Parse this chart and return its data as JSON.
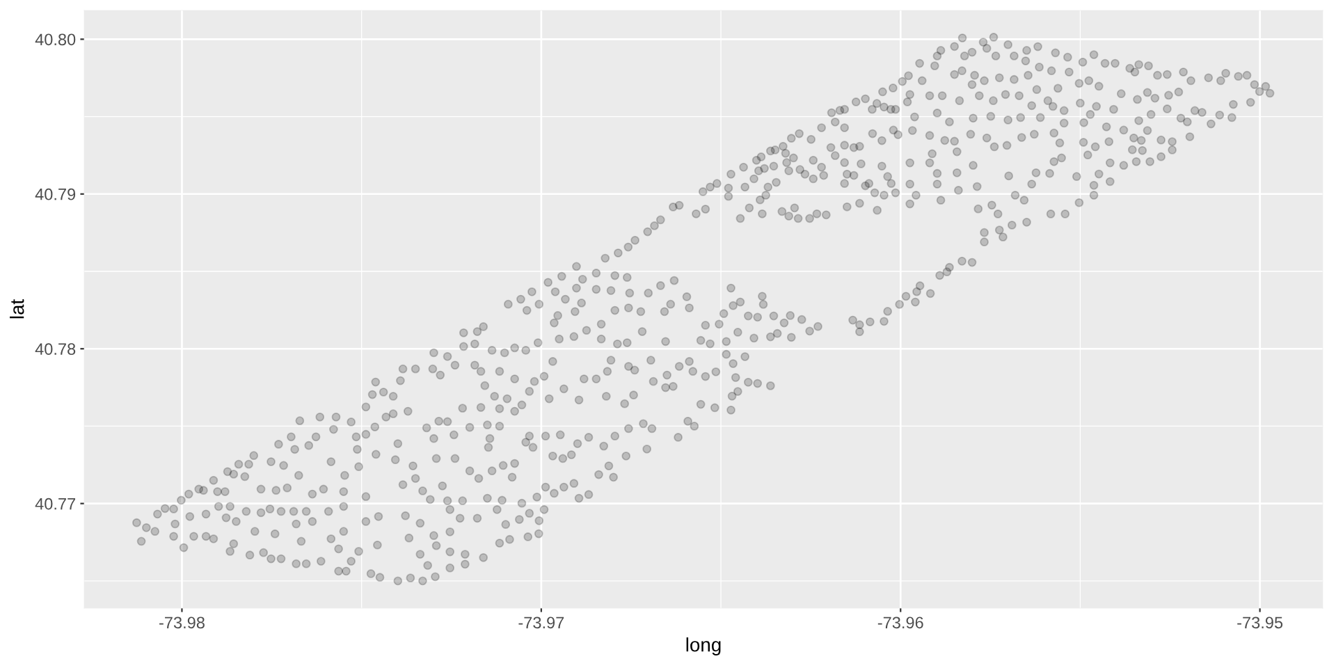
{
  "chart_data": {
    "type": "scatter",
    "xlabel": "long",
    "ylabel": "lat",
    "color": "#000000",
    "marker": "circle",
    "grid": true,
    "xlim": [
      -73.98272,
      -73.94825
    ],
    "ylim": [
      40.76324,
      40.80186
    ],
    "xticks": [
      -73.98,
      -73.97,
      -73.96,
      -73.95
    ],
    "yticks": [
      40.77,
      40.78,
      40.79,
      {
        "value": 40.8,
        "label": "40.80"
      }
    ],
    "x": [
      -73.98126,
      -73.98113,
      -73.98099,
      -73.98075,
      -73.98068,
      -73.98047,
      -73.98023,
      -73.98023,
      -73.98019,
      -73.98002,
      -73.97995,
      -73.97981,
      -73.97978,
      -73.97967,
      -73.97953,
      -73.9794,
      -73.97933,
      -73.97933,
      -73.97912,
      -73.97912,
      -73.97901,
      -73.97898,
      -73.9788,
      -73.97877,
      -73.97873,
      -73.97866,
      -73.97866,
      -73.97856,
      -73.97856,
      -73.97849,
      -73.97842,
      -73.97825,
      -73.97821,
      -73.97814,
      -73.97811,
      -73.978,
      -73.97797,
      -73.9778,
      -73.9778,
      -73.97773,
      -73.97755,
      -73.97752,
      -73.97752,
      -73.97741,
      -73.97738,
      -73.97731,
      -73.97724,
      -73.97724,
      -73.97717,
      -73.97707,
      -73.97696,
      -73.97689,
      -73.97686,
      -73.97682,
      -73.97682,
      -73.97675,
      -73.97672,
      -73.97668,
      -73.97654,
      -73.97654,
      -73.97647,
      -73.97637,
      -73.97637,
      -73.97627,
      -73.97616,
      -73.97613,
      -73.97606,
      -73.97592,
      -73.97585,
      -73.97585,
      -73.97578,
      -73.97571,
      -73.97564,
      -73.97564,
      -73.9755,
      -73.9755,
      -73.9755,
      -73.97547,
      -73.97543,
      -73.97529,
      -73.97529,
      -73.97515,
      -73.97512,
      -73.97508,
      -73.97508,
      -73.97488,
      -73.97488,
      -73.97488,
      -73.97488,
      -73.97474,
      -73.9747,
      -73.97463,
      -73.9746,
      -73.97453,
      -73.97456,
      -73.97449,
      -73.97439,
      -73.97432,
      -73.97461,
      -73.96981,
      -73.96943,
      -73.96885,
      -73.96847,
      -73.96795,
      -73.96761,
      -73.97026,
      -73.96961,
      -73.96933,
      -73.96902,
      -73.96847,
      -73.96806,
      -73.96754,
      -73.96702,
      -73.96668,
      -73.9663,
      -73.96595,
      -73.97092,
      -73.97057,
      -73.9704,
      -73.97006,
      -73.96954,
      -73.96964,
      -73.96906,
      -73.96888,
      -73.96874,
      -73.96833,
      -73.96833,
      -73.96795,
      -73.96757,
      -73.96723,
      -73.96657,
      -73.9664,
      -73.96588,
      -73.96719,
      -73.96654,
      -73.97216,
      -73.97178,
      -73.97161,
      -73.97216,
      -73.97185,
      -73.97009,
      -73.9695,
      -73.96909,
      -73.96788,
      -73.96761,
      -73.96902,
      -73.97299,
      -73.97261,
      -73.9724,
      -73.97385,
      -73.9735,
      -73.97302,
      -73.97281,
      -73.97392,
      -73.97185,
      -73.97168,
      -73.97137,
      -73.97102,
      -73.97074,
      -73.97043,
      -73.97157,
      -73.97116,
      -73.97074,
      -73.97095,
      -73.97116,
      -73.97074,
      -73.97054,
      -73.97033,
      -73.96992,
      -73.96968,
      -73.97019,
      -73.96978,
      -73.96937,
      -73.96895,
      -73.96881,
      -73.96847,
      -73.96816,
      -73.96806,
      -73.96757,
      -73.9674,
      -73.96695,
      -73.9665,
      -73.96633,
      -73.96616,
      -73.96588,
      -73.96578,
      -73.96819,
      -73.96768,
      -73.96743,
      -73.96688,
      -73.96654,
      -73.97219,
      -73.97168,
      -73.9713,
      -73.97412,
      -73.97412,
      -73.97371,
      -73.97285,
      -73.97261,
      -73.97319,
      -73.97199,
      -73.9715,
      -73.97116,
      -73.96592,
      -73.96574,
      -73.96716,
      -73.96692,
      -73.96757,
      -73.97143,
      -73.97147,
      -73.97299,
      -73.97243,
      -73.97399,
      -73.97033,
      -73.96988,
      -73.96947,
      -73.97043,
      -73.97023,
      -73.96968,
      -73.9694,
      -73.96916,
      -73.96899,
      -73.96868,
      -73.96826,
      -73.96795,
      -73.96706,
      -73.96619,
      -73.96812,
      -73.96799,
      -73.9684,
      -73.96764,
      -73.97106,
      -73.97074,
      -73.97081,
      -73.97137,
      -73.97174,
      -73.97199,
      -73.9724,
      -73.97292,
      -73.97357,
      -73.9735,
      -73.97406,
      -73.97385,
      -73.9733,
      -73.97275,
      -73.97309,
      -73.97261,
      -73.97219,
      -73.9715,
      -73.97109,
      -73.97054,
      -73.97012,
      -73.96988,
      -73.96937,
      -73.96909,
      -73.96895,
      -73.96868,
      -73.96964,
      -73.96992,
      -73.97033,
      -73.97061,
      -73.97006,
      -73.97123,
      -73.97099,
      -73.97088,
      -73.97116,
      -73.97037,
      -73.97007,
      -73.97178,
      -73.97226,
      -73.97254,
      -73.97337,
      -73.97378,
      -73.97254,
      -73.97299,
      -73.97292,
      -73.97254,
      -73.97212,
      -73.97161,
      -73.97368,
      -73.97337,
      -73.97316,
      -73.97254,
      -73.97212,
      -73.97295,
      -73.97364,
      -73.97399,
      -73.9733,
      -73.96822,
      -73.96786,
      -73.96758,
      -73.96739,
      -73.96704,
      -73.96685,
      -73.96668,
      -73.96633,
      -73.96616,
      -73.9655,
      -73.9653,
      -73.96511,
      -73.96479,
      -73.96479,
      -73.96472,
      -73.96437,
      -73.96433,
      -73.96408,
      -73.96401,
      -73.96388,
      -73.96395,
      -73.96375,
      -73.96379,
      -73.96369,
      -73.96362,
      -73.96349,
      -73.96353,
      -73.96346,
      -73.96327,
      -73.9632,
      -73.96317,
      -73.96311,
      -73.96298,
      -73.96304,
      -73.96282,
      -73.9628,
      -73.96266,
      -73.96249,
      -73.96243,
      -73.96243,
      -73.9622,
      -73.96214,
      -73.96194,
      -73.96182,
      -73.96156,
      -73.96156,
      -73.96149,
      -73.96156,
      -73.9613,
      -73.96114,
      -73.9613,
      -73.9611,
      -73.96098,
      -73.96088,
      -73.96072,
      -73.96078,
      -73.96052,
      -73.96052,
      -73.96046,
      -73.96036,
      -73.96026,
      -73.96014,
      -73.96007,
      -73.9602,
      -73.9622,
      -73.96156,
      -73.96569,
      -73.96543,
      -73.96446,
      -73.96421,
      -73.96391,
      -73.96385,
      -73.9633,
      -73.96311,
      -73.96295,
      -73.96285,
      -73.96253,
      -73.96233,
      -73.96207,
      -73.96149,
      -73.96114,
      -73.96065,
      -73.96472,
      -73.96446,
      -73.96466,
      -73.96385,
      -73.96382,
      -73.96398,
      -73.96353,
      -73.96307,
      -73.96324,
      -73.96275,
      -73.96343,
      -73.96304,
      -73.96362,
      -73.96408,
      -73.96424,
      -73.96453,
      -73.96492,
      -73.96505,
      -73.96543,
      -73.96556,
      -73.9653,
      -73.96485,
      -73.96485,
      -73.96466,
      -73.96433,
      -73.96514,
      -73.96543,
      -73.96459,
      -73.96424,
      -73.96398,
      -73.96362,
      -73.96453,
      -73.96469,
      -73.96556,
      -73.96517,
      -73.96472,
      -73.96253,
      -73.9623,
      -73.96133,
      -73.96114,
      -73.96114,
      -73.96085,
      -73.96046,
      -73.96036,
      -73.96003,
      -73.95985,
      -73.95959,
      -73.95955,
      -73.95946,
      -73.95917,
      -73.95891,
      -73.95871,
      -73.96169,
      -73.96156,
      -73.96192,
      -73.96182,
      -73.96124,
      -73.96098,
      -73.96079,
      -73.96066,
      -73.96046,
      -73.96027,
      -73.96014,
      -73.9605,
      -73.96021,
      -73.95995,
      -73.95828,
      -73.95741,
      -73.9577,
      -73.9585,
      -73.95888,
      -73.95898,
      -73.95822,
      -73.95801,
      -73.9576,
      -73.95735,
      -73.95701,
      -73.95684,
      -73.95649,
      -73.95618,
      -73.95652,
      -73.95569,
      -73.95535,
      -73.95493,
      -73.95462,
      -73.95431,
      -73.95403,
      -73.95362,
      -73.95337,
      -73.9531,
      -73.95348,
      -73.95285,
      -73.95258,
      -73.95213,
      -73.95192,
      -73.95143,
      -73.95109,
      -73.95095,
      -73.9506,
      -73.95036,
      -73.95015,
      -73.94984,
      -73.95001,
      -73.94972,
      -73.95947,
      -73.95905,
      -73.95829,
      -73.9585,
      -73.95794,
      -73.95801,
      -73.95767,
      -73.95725,
      -73.95684,
      -73.95645,
      -73.95614,
      -73.9558,
      -73.95531,
      -73.95503,
      -73.95476,
      -73.95562,
      -73.95448,
      -73.95978,
      -73.9594,
      -73.95974,
      -73.95981,
      -73.95919,
      -73.95884,
      -73.95836,
      -73.95781,
      -73.95742,
      -73.95708,
      -73.9567,
      -73.95621,
      -73.9559,
      -73.95576,
      -73.95545,
      -73.955,
      -73.95455,
      -73.95407,
      -73.95386,
      -73.95341,
      -73.95313,
      -73.95292,
      -73.95254,
      -73.95226,
      -73.95258,
      -73.95181,
      -73.95161,
      -73.95074,
      -73.95026,
      -73.95961,
      -73.95898,
      -73.95864,
      -73.95798,
      -73.95749,
      -73.95701,
      -73.95666,
      -73.95635,
      -73.95611,
      -73.95545,
      -73.9549,
      -73.95472,
      -73.95427,
      -73.95379,
      -73.95337,
      -73.95303,
      -73.9522,
      -73.95202,
      -73.95112,
      -73.95136,
      -73.95078,
      -73.95967,
      -73.95919,
      -73.95877,
      -73.9585,
      -73.95843,
      -73.95805,
      -73.9576,
      -73.95739,
      -73.95704,
      -73.95663,
      -73.95628,
      -73.95573,
      -73.95557,
      -73.95491,
      -73.95458,
      -73.95479,
      -73.9542,
      -73.95351,
      -73.9533,
      -73.95313,
      -73.95327,
      -73.95355,
      -73.95275,
      -73.95244,
      -73.95244,
      -73.95195,
      -73.95912,
      -73.95974,
      -73.95919,
      -73.95898,
      -73.95843,
      -73.95798,
      -73.95974,
      -73.95898,
      -73.95839,
      -73.95787,
      -73.95957,
      -73.95974,
      -73.95888,
      -73.95784,
      -73.95729,
      -73.95746,
      -73.95699,
      -73.95681,
      -73.95656,
      -73.95635,
      -73.95623,
      -73.95585,
      -73.95573,
      -73.95552,
      -73.95582,
      -73.95542,
      -73.95503,
      -73.9551,
      -73.95462,
      -73.95448,
      -73.95462,
      -73.95417,
      -73.95417,
      -73.95379,
      -73.95344,
      -73.95306,
      -73.95275,
      -73.95649,
      -73.9569,
      -73.95725,
      -73.95767,
      -73.95767,
      -73.95715,
      -73.95829,
      -73.95801,
      -73.95864
    ],
    "values": [
      40.76876,
      40.76756,
      40.76844,
      40.7682,
      40.76932,
      40.76968,
      40.76965,
      40.76788,
      40.76868,
      40.77021,
      40.76715,
      40.77061,
      40.76916,
      40.76788,
      40.77093,
      40.77085,
      40.76932,
      40.76788,
      40.7715,
      40.76772,
      40.77077,
      40.76981,
      40.77077,
      40.76908,
      40.77206,
      40.76981,
      40.76691,
      40.7719,
      40.7674,
      40.76884,
      40.77254,
      40.77174,
      40.76949,
      40.77254,
      40.76667,
      40.7731,
      40.7682,
      40.76941,
      40.77093,
      40.76683,
      40.76965,
      40.7727,
      40.76643,
      40.76804,
      40.77085,
      40.77383,
      40.76949,
      40.76643,
      40.77246,
      40.77101,
      40.77431,
      40.76949,
      40.7735,
      40.76868,
      40.76611,
      40.77182,
      40.77535,
      40.76756,
      40.76611,
      40.76949,
      40.77375,
      40.77061,
      40.76884,
      40.77431,
      40.77559,
      40.76627,
      40.77093,
      40.76949,
      40.7727,
      40.76772,
      40.77479,
      40.77559,
      40.76563,
      40.76707,
      40.76981,
      40.77077,
      40.7682,
      40.77182,
      40.76563,
      40.77527,
      40.76627,
      40.77431,
      40.7735,
      40.77238,
      40.76691,
      40.77624,
      40.77447,
      40.76884,
      40.77045,
      40.76547,
      40.77704,
      40.77495,
      40.77318,
      40.76916,
      40.76732,
      40.76523,
      40.7772,
      40.77559,
      40.77785,
      40.78429,
      40.78468,
      40.78449,
      40.78489,
      40.78473,
      40.78461,
      40.78368,
      40.78368,
      40.7832,
      40.78392,
      40.78384,
      40.78376,
      40.7836,
      40.7836,
      40.78408,
      40.78441,
      40.78336,
      40.78288,
      40.7832,
      40.78248,
      40.78288,
      40.78215,
      40.78167,
      40.7824,
      40.78296,
      40.78119,
      40.78159,
      40.78063,
      40.78248,
      40.78264,
      40.7824,
      40.7824,
      40.78288,
      40.78264,
      40.78111,
      40.78047,
      40.78103,
      40.78111,
      40.78143,
      40.78015,
      40.78031,
      40.78039,
      40.78063,
      40.78079,
      40.78031,
      40.78039,
      40.78532,
      40.77974,
      40.7795,
      40.77894,
      40.7787,
      40.7787,
      40.7787,
      40.7783,
      40.77794,
      40.77894,
      40.77854,
      40.7799,
      40.77974,
      40.78006,
      40.7799,
      40.77762,
      40.77854,
      40.77805,
      40.77677,
      40.77613,
      40.77596,
      40.77637,
      40.77725,
      40.77822,
      40.77918,
      40.77789,
      40.77677,
      40.77741,
      40.77669,
      40.77805,
      40.77805,
      40.77854,
      40.77926,
      40.77886,
      40.77862,
      40.77926,
      40.7783,
      40.77757,
      40.77886,
      40.77918,
      40.77854,
      40.77693,
      40.77645,
      40.77701,
      40.77789,
      40.77749,
      40.77616,
      40.77621,
      40.77693,
      40.77693,
      40.7758,
      40.77596,
      40.77532,
      40.77529,
      40.77489,
      40.77492,
      40.77508,
      40.775,
      40.77532,
      40.775,
      40.77516,
      40.77484,
      40.77484,
      40.7742,
      40.77363,
      40.7742,
      40.77444,
      40.77387,
      40.77436,
      40.77436,
      40.77444,
      40.77396,
      40.77363,
      40.77307,
      40.77291,
      40.77315,
      40.77387,
      40.77428,
      40.77371,
      40.77436,
      40.77352,
      40.77428,
      40.77243,
      40.7717,
      40.77187,
      40.77307,
      40.77246,
      40.77259,
      40.7717,
      40.77211,
      40.77162,
      40.77211,
      40.77291,
      40.77291,
      40.77243,
      40.77162,
      40.77283,
      40.77122,
      40.77082,
      40.77114,
      40.77026,
      40.77018,
      40.77018,
      40.77034,
      40.77021,
      40.77002,
      40.77042,
      40.77106,
      40.77106,
      40.7713,
      40.77034,
      40.77058,
      40.77066,
      40.76961,
      40.76937,
      40.76897,
      40.76889,
      40.76961,
      40.76865,
      40.76768,
      40.76744,
      40.76785,
      40.76805,
      40.76905,
      40.76905,
      40.76961,
      40.76873,
      40.76921,
      40.76817,
      40.76793,
      40.76728,
      40.76688,
      40.76672,
      40.76651,
      40.76777,
      40.76672,
      40.766,
      40.76584,
      40.76608,
      40.76527,
      40.76519,
      40.765,
      40.765,
      40.78585,
      40.78619,
      40.78657,
      40.78701,
      40.78756,
      40.78795,
      40.78833,
      40.78916,
      40.78927,
      40.79015,
      40.79045,
      40.79068,
      40.79038,
      40.78985,
      40.79128,
      40.79173,
      40.79045,
      40.79098,
      40.79218,
      40.7924,
      40.7915,
      40.78992,
      40.79165,
      40.79045,
      40.79278,
      40.79285,
      40.7918,
      40.79075,
      40.79308,
      40.79263,
      40.79203,
      40.7915,
      40.79233,
      40.7936,
      40.7939,
      40.79158,
      40.79128,
      40.79353,
      40.79218,
      40.79098,
      40.79173,
      40.7912,
      40.793,
      40.79248,
      40.79315,
      40.79203,
      40.79128,
      40.79068,
      40.793,
      40.79308,
      40.7912,
      40.79195,
      40.79053,
      40.79068,
      40.79008,
      40.7939,
      40.79345,
      40.7918,
      40.78992,
      40.79113,
      40.79068,
      40.79008,
      40.79383,
      40.79413,
      40.79428,
      40.79428,
      40.78872,
      40.78902,
      40.78842,
      40.7891,
      40.78962,
      40.78872,
      40.78887,
      40.78857,
      40.7891,
      40.78842,
      40.78842,
      40.78872,
      40.78865,
      40.78917,
      40.7894,
      40.78895,
      40.78392,
      40.78302,
      40.78279,
      40.78339,
      40.78287,
      40.78204,
      40.78212,
      40.78215,
      40.78167,
      40.78189,
      40.78099,
      40.78074,
      40.78077,
      40.78069,
      40.78212,
      40.78107,
      40.78227,
      40.78159,
      40.78152,
      40.78054,
      40.78032,
      40.78047,
      40.77964,
      40.77904,
      40.77949,
      40.77851,
      40.77821,
      40.77814,
      40.77784,
      40.77776,
      40.77761,
      40.77724,
      40.77694,
      40.77641,
      40.77619,
      40.77604,
      40.78114,
      40.78144,
      40.78185,
      40.78155,
      40.7811,
      40.78174,
      40.78177,
      40.78242,
      40.78287,
      40.78339,
      40.78302,
      40.78369,
      40.78407,
      40.78357,
      40.78474,
      40.78497,
      40.7954,
      40.79547,
      40.79525,
      40.79465,
      40.79595,
      40.79615,
      40.79547,
      40.79585,
      40.79562,
      40.79547,
      40.79547,
      40.7966,
      40.79685,
      40.79727,
      40.80008,
      40.80013,
      40.79981,
      40.79953,
      40.79928,
      40.79892,
      40.79892,
      40.79916,
      40.79941,
      40.79892,
      40.79965,
      40.79892,
      40.79928,
      40.79952,
      40.7986,
      40.79912,
      40.79884,
      40.79852,
      40.799,
      40.79844,
      40.79844,
      40.79812,
      40.79836,
      40.79828,
      40.79788,
      40.79767,
      40.79772,
      40.79788,
      40.79732,
      40.79751,
      40.79732,
      40.7978,
      40.7976,
      40.79767,
      40.79707,
      40.79695,
      40.79662,
      40.79651,
      40.79844,
      40.79828,
      40.79796,
      40.79772,
      40.79767,
      40.79707,
      40.79732,
      40.79751,
      40.7974,
      40.79767,
      40.7982,
      40.79796,
      40.79788,
      40.79715,
      40.79732,
      40.79683,
      40.79696,
      40.79764,
      40.79732,
      40.79643,
      40.79595,
      40.79635,
      40.79635,
      40.79603,
      40.79635,
      40.79603,
      40.79643,
      40.79635,
      40.79675,
      40.79603,
      40.79566,
      40.79539,
      40.79587,
      40.79566,
      40.79547,
      40.79648,
      40.79611,
      40.79656,
      40.79619,
      40.79638,
      40.79659,
      40.7955,
      40.79539,
      40.79527,
      40.79579,
      40.79592,
      40.79498,
      40.79523,
      40.79466,
      40.7949,
      40.79502,
      40.79478,
      40.79494,
      40.79571,
      40.79494,
      40.79458,
      40.79461,
      40.79514,
      40.79434,
      40.79413,
      40.79474,
      40.79514,
      40.7949,
      40.79466,
      40.7951,
      40.79453,
      40.79494,
      40.7941,
      40.79378,
      40.79346,
      40.79341,
      40.79273,
      40.79386,
      40.79362,
      40.79305,
      40.79314,
      40.79365,
      40.79386,
      40.79394,
      40.7933,
      40.79334,
      40.79305,
      40.79252,
      40.79338,
      40.79362,
      40.79346,
      40.7941,
      40.79281,
      40.79286,
      40.79349,
      40.79338,
      40.79285,
      40.7937,
      40.7926,
      40.79201,
      40.79201,
      40.79133,
      40.79137,
      40.79185,
      40.79064,
      40.79064,
      40.79024,
      40.79048,
      40.78992,
      40.78936,
      40.7896,
      40.78904,
      40.78871,
      40.78928,
      40.79117,
      40.78992,
      40.7896,
      40.79064,
      40.79137,
      40.79133,
      40.79209,
      40.79233,
      40.78871,
      40.78871,
      40.78944,
      40.79113,
      40.79056,
      40.79129,
      40.78992,
      40.7908,
      40.79201,
      40.79185,
      40.79209,
      40.79209,
      40.79241,
      40.78818,
      40.78799,
      40.78767,
      40.78751,
      40.7869,
      40.78722,
      40.78566,
      40.78558,
      40.78526
    ]
  }
}
